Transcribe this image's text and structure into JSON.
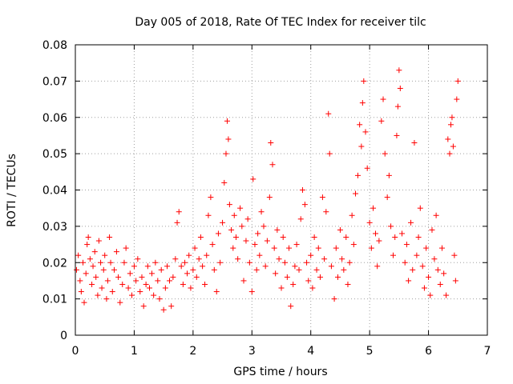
{
  "chart_data": {
    "type": "scatter",
    "title": "Day 005 of 2018, Rate Of TEC Index for receiver tilc",
    "xlabel": "GPS time / hours",
    "ylabel": "ROTI / TECUs",
    "xlim": [
      0,
      7
    ],
    "ylim": [
      0,
      0.08
    ],
    "xticks": [
      0,
      1,
      2,
      3,
      4,
      5,
      6,
      7
    ],
    "xtick_labels": [
      "0",
      "1",
      "2",
      "3",
      "4",
      "5",
      "6",
      "7"
    ],
    "yticks": [
      0,
      0.01,
      0.02,
      0.03,
      0.04,
      0.05,
      0.06,
      0.07,
      0.08
    ],
    "ytick_labels": [
      "0",
      "0.01",
      "0.02",
      "0.03",
      "0.04",
      "0.05",
      "0.06",
      "0.07",
      "0.08"
    ],
    "grid": true,
    "marker": "+",
    "color": "#ff0000",
    "series": [
      {
        "name": "ROTI",
        "points": [
          [
            0.02,
            0.018
          ],
          [
            0.05,
            0.022
          ],
          [
            0.08,
            0.015
          ],
          [
            0.1,
            0.012
          ],
          [
            0.13,
            0.02
          ],
          [
            0.15,
            0.009
          ],
          [
            0.18,
            0.017
          ],
          [
            0.2,
            0.025
          ],
          [
            0.22,
            0.027
          ],
          [
            0.25,
            0.021
          ],
          [
            0.28,
            0.014
          ],
          [
            0.3,
            0.019
          ],
          [
            0.33,
            0.023
          ],
          [
            0.35,
            0.016
          ],
          [
            0.38,
            0.011
          ],
          [
            0.4,
            0.026
          ],
          [
            0.43,
            0.02
          ],
          [
            0.45,
            0.013
          ],
          [
            0.48,
            0.018
          ],
          [
            0.5,
            0.022
          ],
          [
            0.53,
            0.01
          ],
          [
            0.55,
            0.015
          ],
          [
            0.58,
            0.027
          ],
          [
            0.6,
            0.02
          ],
          [
            0.63,
            0.012
          ],
          [
            0.66,
            0.018
          ],
          [
            0.7,
            0.023
          ],
          [
            0.73,
            0.016
          ],
          [
            0.76,
            0.009
          ],
          [
            0.8,
            0.014
          ],
          [
            0.83,
            0.02
          ],
          [
            0.86,
            0.024
          ],
          [
            0.9,
            0.013
          ],
          [
            0.93,
            0.017
          ],
          [
            0.96,
            0.011
          ],
          [
            1.0,
            0.019
          ],
          [
            1.03,
            0.015
          ],
          [
            1.06,
            0.021
          ],
          [
            1.1,
            0.012
          ],
          [
            1.13,
            0.016
          ],
          [
            1.16,
            0.008
          ],
          [
            1.2,
            0.014
          ],
          [
            1.23,
            0.019
          ],
          [
            1.26,
            0.013
          ],
          [
            1.3,
            0.017
          ],
          [
            1.33,
            0.011
          ],
          [
            1.36,
            0.02
          ],
          [
            1.4,
            0.015
          ],
          [
            1.43,
            0.01
          ],
          [
            1.46,
            0.018
          ],
          [
            1.5,
            0.007
          ],
          [
            1.53,
            0.013
          ],
          [
            1.56,
            0.019
          ],
          [
            1.6,
            0.015
          ],
          [
            1.63,
            0.008
          ],
          [
            1.66,
            0.016
          ],
          [
            1.7,
            0.021
          ],
          [
            1.73,
            0.031
          ],
          [
            1.76,
            0.034
          ],
          [
            1.8,
            0.019
          ],
          [
            1.83,
            0.014
          ],
          [
            1.86,
            0.02
          ],
          [
            1.9,
            0.017
          ],
          [
            1.93,
            0.022
          ],
          [
            1.96,
            0.013
          ],
          [
            2.0,
            0.018
          ],
          [
            2.03,
            0.024
          ],
          [
            2.06,
            0.016
          ],
          [
            2.1,
            0.021
          ],
          [
            2.13,
            0.027
          ],
          [
            2.16,
            0.019
          ],
          [
            2.2,
            0.014
          ],
          [
            2.23,
            0.022
          ],
          [
            2.26,
            0.033
          ],
          [
            2.3,
            0.038
          ],
          [
            2.33,
            0.025
          ],
          [
            2.36,
            0.018
          ],
          [
            2.4,
            0.012
          ],
          [
            2.43,
            0.028
          ],
          [
            2.46,
            0.02
          ],
          [
            2.5,
            0.031
          ],
          [
            2.53,
            0.042
          ],
          [
            2.56,
            0.05
          ],
          [
            2.58,
            0.059
          ],
          [
            2.6,
            0.054
          ],
          [
            2.62,
            0.036
          ],
          [
            2.65,
            0.029
          ],
          [
            2.68,
            0.024
          ],
          [
            2.7,
            0.033
          ],
          [
            2.73,
            0.027
          ],
          [
            2.76,
            0.021
          ],
          [
            2.8,
            0.035
          ],
          [
            2.83,
            0.03
          ],
          [
            2.86,
            0.015
          ],
          [
            2.9,
            0.026
          ],
          [
            2.93,
            0.032
          ],
          [
            2.96,
            0.02
          ],
          [
            3.0,
            0.012
          ],
          [
            3.02,
            0.043
          ],
          [
            3.05,
            0.025
          ],
          [
            3.08,
            0.018
          ],
          [
            3.1,
            0.028
          ],
          [
            3.13,
            0.022
          ],
          [
            3.16,
            0.034
          ],
          [
            3.2,
            0.03
          ],
          [
            3.23,
            0.019
          ],
          [
            3.26,
            0.026
          ],
          [
            3.3,
            0.038
          ],
          [
            3.32,
            0.053
          ],
          [
            3.35,
            0.047
          ],
          [
            3.38,
            0.024
          ],
          [
            3.4,
            0.017
          ],
          [
            3.43,
            0.029
          ],
          [
            3.46,
            0.021
          ],
          [
            3.5,
            0.013
          ],
          [
            3.53,
            0.027
          ],
          [
            3.56,
            0.02
          ],
          [
            3.6,
            0.016
          ],
          [
            3.63,
            0.024
          ],
          [
            3.66,
            0.008
          ],
          [
            3.7,
            0.014
          ],
          [
            3.73,
            0.019
          ],
          [
            3.76,
            0.025
          ],
          [
            3.8,
            0.018
          ],
          [
            3.83,
            0.032
          ],
          [
            3.86,
            0.04
          ],
          [
            3.9,
            0.036
          ],
          [
            3.93,
            0.02
          ],
          [
            3.96,
            0.015
          ],
          [
            4.0,
            0.022
          ],
          [
            4.03,
            0.013
          ],
          [
            4.06,
            0.027
          ],
          [
            4.1,
            0.018
          ],
          [
            4.13,
            0.024
          ],
          [
            4.16,
            0.016
          ],
          [
            4.2,
            0.038
          ],
          [
            4.23,
            0.021
          ],
          [
            4.26,
            0.034
          ],
          [
            4.3,
            0.061
          ],
          [
            4.32,
            0.05
          ],
          [
            4.35,
            0.019
          ],
          [
            4.4,
            0.01
          ],
          [
            4.43,
            0.024
          ],
          [
            4.46,
            0.016
          ],
          [
            4.5,
            0.029
          ],
          [
            4.53,
            0.021
          ],
          [
            4.56,
            0.018
          ],
          [
            4.6,
            0.027
          ],
          [
            4.63,
            0.014
          ],
          [
            4.66,
            0.02
          ],
          [
            4.7,
            0.033
          ],
          [
            4.73,
            0.025
          ],
          [
            4.76,
            0.039
          ],
          [
            4.8,
            0.044
          ],
          [
            4.83,
            0.058
          ],
          [
            4.86,
            0.052
          ],
          [
            4.88,
            0.064
          ],
          [
            4.9,
            0.07
          ],
          [
            4.93,
            0.056
          ],
          [
            4.96,
            0.046
          ],
          [
            5.0,
            0.031
          ],
          [
            5.03,
            0.024
          ],
          [
            5.06,
            0.035
          ],
          [
            5.1,
            0.028
          ],
          [
            5.13,
            0.019
          ],
          [
            5.16,
            0.026
          ],
          [
            5.2,
            0.059
          ],
          [
            5.23,
            0.065
          ],
          [
            5.26,
            0.05
          ],
          [
            5.3,
            0.038
          ],
          [
            5.33,
            0.044
          ],
          [
            5.36,
            0.03
          ],
          [
            5.4,
            0.022
          ],
          [
            5.43,
            0.027
          ],
          [
            5.46,
            0.055
          ],
          [
            5.48,
            0.063
          ],
          [
            5.5,
            0.073
          ],
          [
            5.52,
            0.068
          ],
          [
            5.55,
            0.028
          ],
          [
            5.6,
            0.02
          ],
          [
            5.63,
            0.025
          ],
          [
            5.66,
            0.015
          ],
          [
            5.7,
            0.031
          ],
          [
            5.73,
            0.018
          ],
          [
            5.76,
            0.053
          ],
          [
            5.8,
            0.022
          ],
          [
            5.83,
            0.027
          ],
          [
            5.86,
            0.035
          ],
          [
            5.9,
            0.019
          ],
          [
            5.93,
            0.013
          ],
          [
            5.96,
            0.024
          ],
          [
            6.0,
            0.016
          ],
          [
            6.03,
            0.011
          ],
          [
            6.06,
            0.029
          ],
          [
            6.1,
            0.021
          ],
          [
            6.13,
            0.033
          ],
          [
            6.16,
            0.018
          ],
          [
            6.2,
            0.014
          ],
          [
            6.23,
            0.024
          ],
          [
            6.26,
            0.017
          ],
          [
            6.3,
            0.011
          ],
          [
            6.33,
            0.054
          ],
          [
            6.36,
            0.05
          ],
          [
            6.38,
            0.058
          ],
          [
            6.4,
            0.06
          ],
          [
            6.42,
            0.052
          ],
          [
            6.44,
            0.022
          ],
          [
            6.46,
            0.015
          ],
          [
            6.48,
            0.065
          ],
          [
            6.5,
            0.07
          ]
        ]
      }
    ]
  }
}
